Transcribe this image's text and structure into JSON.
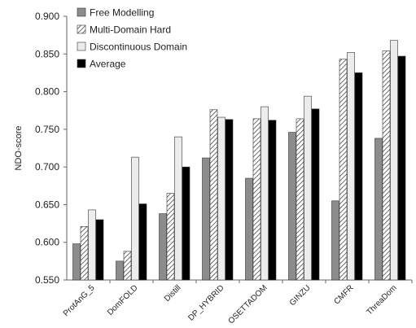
{
  "chart_data": {
    "type": "bar",
    "title": "",
    "xlabel": "",
    "ylabel": "NDO-score",
    "ylim": [
      0.55,
      0.9
    ],
    "yticks": [
      "0.550",
      "0.600",
      "0.650",
      "0.700",
      "0.750",
      "0.800",
      "0.850",
      "0.900"
    ],
    "grid": false,
    "legend_position": "top-left",
    "categories": [
      "ProtAnG_5",
      "DomFOLD",
      "Distill",
      "DP_HYBRID",
      "OSETTADOM",
      "GINZU",
      "CMFR",
      "ThreaDom"
    ],
    "series": [
      {
        "name": "Free Modelling",
        "style": "gray",
        "color": "#8c8c8c",
        "values": [
          0.598,
          0.575,
          0.638,
          0.712,
          0.685,
          0.746,
          0.655,
          0.738
        ]
      },
      {
        "name": "Multi-Domain Hard",
        "style": "hatched",
        "color": "#ffffff",
        "values": [
          0.621,
          0.588,
          0.665,
          0.776,
          0.764,
          0.764,
          0.843,
          0.854
        ]
      },
      {
        "name": "Discontinuous Domain",
        "style": "light",
        "color": "#ececec",
        "values": [
          0.643,
          0.713,
          0.74,
          0.766,
          0.78,
          0.794,
          0.852,
          0.868
        ]
      },
      {
        "name": "Average",
        "style": "solid",
        "color": "#000000",
        "values": [
          0.63,
          0.651,
          0.7,
          0.763,
          0.762,
          0.777,
          0.825,
          0.847
        ]
      }
    ]
  }
}
